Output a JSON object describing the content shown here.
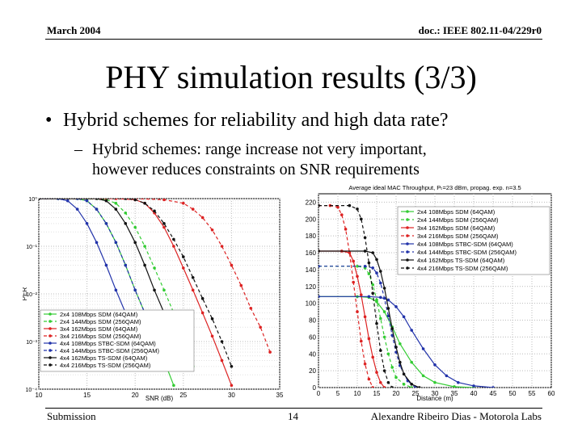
{
  "header": {
    "date": "March 2004",
    "doc": "doc.: IEEE 802.11-04/229r0"
  },
  "title": "PHY simulation results (3/3)",
  "bullet": "Hybrid schemes for reliability and high data rate?",
  "sub_bullet": {
    "line1": "Hybrid schemes: range increase not very important,",
    "line2": "however reduces constraints on SNR requirements"
  },
  "footer": {
    "left": "Submission",
    "page": "14",
    "right": "Alexandre Ribeiro Dias - Motorola Labs"
  },
  "chart_data": [
    {
      "type": "line",
      "title": "",
      "xlabel": "SNR (dB)",
      "ylabel": "PER",
      "xlim": [
        10,
        35
      ],
      "ylim": [
        0.0001,
        1
      ],
      "yscale": "log",
      "grid": true,
      "legend_position": "bottom-left",
      "xticks": [
        10,
        15,
        20,
        25,
        30,
        35
      ],
      "ytick_labels": [
        "10⁰",
        "10⁻¹",
        "10⁻²",
        "10⁻³",
        "10⁻⁴"
      ],
      "series": [
        {
          "name": "2x4 108Mbps SDM (64QAM)",
          "color": "#33cc33",
          "dash": "",
          "x": [
            10,
            12,
            14,
            15,
            16,
            17,
            18,
            19,
            20,
            21,
            22,
            23,
            24
          ],
          "y": [
            1,
            1,
            1,
            0.9,
            0.6,
            0.3,
            0.12,
            0.04,
            0.012,
            0.004,
            0.0013,
            0.0004,
            0.00012
          ]
        },
        {
          "name": "2x4 144Mbps SDM (256QAM)",
          "color": "#33cc33",
          "dash": "4,3",
          "x": [
            10,
            15,
            17,
            18,
            19,
            20,
            21,
            22,
            23,
            24,
            25,
            26
          ],
          "y": [
            1,
            1,
            0.95,
            0.8,
            0.5,
            0.25,
            0.1,
            0.035,
            0.012,
            0.004,
            0.0012,
            0.0003
          ]
        },
        {
          "name": "3x4 162Mbps SDM (64QAM)",
          "color": "#dd2222",
          "dash": "",
          "x": [
            10,
            18,
            20,
            21,
            22,
            23,
            24,
            25,
            26,
            27,
            28,
            29,
            30
          ],
          "y": [
            1,
            1,
            0.95,
            0.8,
            0.5,
            0.25,
            0.1,
            0.035,
            0.012,
            0.004,
            0.0013,
            0.0004,
            0.00012
          ]
        },
        {
          "name": "3x4 216Mbps SDM (256QAM)",
          "color": "#dd2222",
          "dash": "4,3",
          "x": [
            10,
            20,
            23,
            25,
            26,
            27,
            28,
            29,
            30,
            31,
            32,
            33,
            34
          ],
          "y": [
            1,
            1,
            0.95,
            0.8,
            0.6,
            0.4,
            0.22,
            0.1,
            0.04,
            0.015,
            0.005,
            0.002,
            0.0006
          ]
        },
        {
          "name": "4x4 108Mbps STBC-SDM (64QAM)",
          "color": "#2233aa",
          "dash": "",
          "x": [
            10,
            12,
            13,
            14,
            15,
            16,
            17,
            18,
            19,
            20,
            21
          ],
          "y": [
            1,
            1,
            0.9,
            0.6,
            0.3,
            0.12,
            0.04,
            0.012,
            0.004,
            0.0012,
            0.0003
          ]
        },
        {
          "name": "4x4 144Mbps STBC-SDM (256QAM)",
          "color": "#2233aa",
          "dash": "4,3",
          "x": [
            10,
            14,
            15,
            16,
            17,
            18,
            19,
            20,
            21,
            22,
            23
          ],
          "y": [
            1,
            1,
            0.9,
            0.6,
            0.3,
            0.12,
            0.04,
            0.012,
            0.004,
            0.0012,
            0.0003
          ]
        },
        {
          "name": "4x4 162Mbps TS-SDM (64QAM)",
          "color": "#111111",
          "dash": "",
          "x": [
            10,
            16,
            17,
            18,
            19,
            20,
            21,
            22,
            23,
            24,
            25
          ],
          "y": [
            1,
            1,
            0.9,
            0.6,
            0.3,
            0.12,
            0.04,
            0.012,
            0.004,
            0.0012,
            0.0003
          ]
        },
        {
          "name": "4x4 216Mbps TS-SDM (256QAM)",
          "color": "#111111",
          "dash": "4,3",
          "x": [
            10,
            19,
            20,
            21,
            22,
            23,
            24,
            25,
            26,
            27,
            28,
            29,
            30
          ],
          "y": [
            1,
            1,
            0.95,
            0.8,
            0.55,
            0.3,
            0.14,
            0.06,
            0.022,
            0.008,
            0.003,
            0.001,
            0.0003
          ]
        }
      ]
    },
    {
      "type": "line",
      "title": "Average ideal MAC Throughput, Pₜ=23 dBm, propag. exp. n=3.5",
      "xlabel": "Distance (m)",
      "ylabel": "",
      "xlim": [
        0,
        60
      ],
      "ylim": [
        0,
        230
      ],
      "grid": true,
      "legend_position": "top-right",
      "xticks": [
        0,
        5,
        10,
        15,
        20,
        25,
        30,
        35,
        40,
        45,
        50,
        55,
        60
      ],
      "yticks": [
        0,
        20,
        40,
        60,
        80,
        100,
        120,
        140,
        160,
        180,
        200,
        220
      ],
      "series": [
        {
          "name": "2x4 108Mbps SDM (64QAM)",
          "color": "#33cc33",
          "dash": "",
          "x": [
            0,
            10,
            13,
            15,
            17,
            19,
            21,
            24,
            27,
            30,
            35,
            40
          ],
          "y": [
            108,
            108,
            107,
            102,
            90,
            72,
            52,
            30,
            14,
            6,
            1,
            0
          ]
        },
        {
          "name": "2x4 144Mbps SDM (256QAM)",
          "color": "#33cc33",
          "dash": "4,3",
          "x": [
            0,
            10,
            12,
            13,
            14,
            15,
            16,
            17,
            18,
            19,
            20,
            22,
            24
          ],
          "y": [
            144,
            144,
            142,
            135,
            122,
            104,
            82,
            60,
            40,
            24,
            12,
            4,
            0
          ]
        },
        {
          "name": "3x4 162Mbps SDM (64QAM)",
          "color": "#dd2222",
          "dash": "",
          "x": [
            0,
            6,
            8,
            9,
            10,
            11,
            12,
            13,
            14,
            15,
            16,
            17
          ],
          "y": [
            162,
            162,
            160,
            150,
            132,
            110,
            84,
            58,
            36,
            18,
            6,
            0
          ]
        },
        {
          "name": "3x4 216Mbps SDM (256QAM)",
          "color": "#dd2222",
          "dash": "4,3",
          "x": [
            0,
            3,
            5,
            6,
            7,
            8,
            9,
            10,
            11,
            12,
            13,
            14
          ],
          "y": [
            216,
            216,
            214,
            205,
            188,
            160,
            125,
            90,
            55,
            28,
            10,
            0
          ]
        },
        {
          "name": "4x4 108Mbps STBC-SDM (64QAM)",
          "color": "#2233aa",
          "dash": "",
          "x": [
            0,
            13,
            16,
            18,
            20,
            22,
            24,
            27,
            30,
            33,
            36,
            40,
            45
          ],
          "y": [
            108,
            108,
            107,
            104,
            96,
            84,
            68,
            46,
            27,
            14,
            6,
            2,
            0
          ]
        },
        {
          "name": "4x4 144Mbps STBC-SDM (256QAM)",
          "color": "#2233aa",
          "dash": "4,3",
          "x": [
            0,
            12,
            14,
            15,
            16,
            17,
            18,
            19,
            20,
            21,
            23,
            25
          ],
          "y": [
            144,
            144,
            142,
            136,
            124,
            106,
            85,
            62,
            42,
            26,
            8,
            0
          ]
        },
        {
          "name": "4x4 162Mbps TS-SDM (64QAM)",
          "color": "#111111",
          "dash": "",
          "x": [
            0,
            12,
            14,
            15,
            16,
            17,
            18,
            19,
            20,
            21,
            22,
            24,
            26
          ],
          "y": [
            162,
            162,
            160,
            152,
            138,
            118,
            94,
            70,
            48,
            30,
            16,
            4,
            0
          ]
        },
        {
          "name": "4x4 216Mbps TS-SDM (256QAM)",
          "color": "#111111",
          "dash": "4,3",
          "x": [
            0,
            8,
            10,
            11,
            12,
            13,
            14,
            15,
            16,
            17,
            18,
            19
          ],
          "y": [
            216,
            216,
            212,
            200,
            178,
            148,
            112,
            76,
            44,
            20,
            6,
            0
          ]
        }
      ]
    }
  ]
}
